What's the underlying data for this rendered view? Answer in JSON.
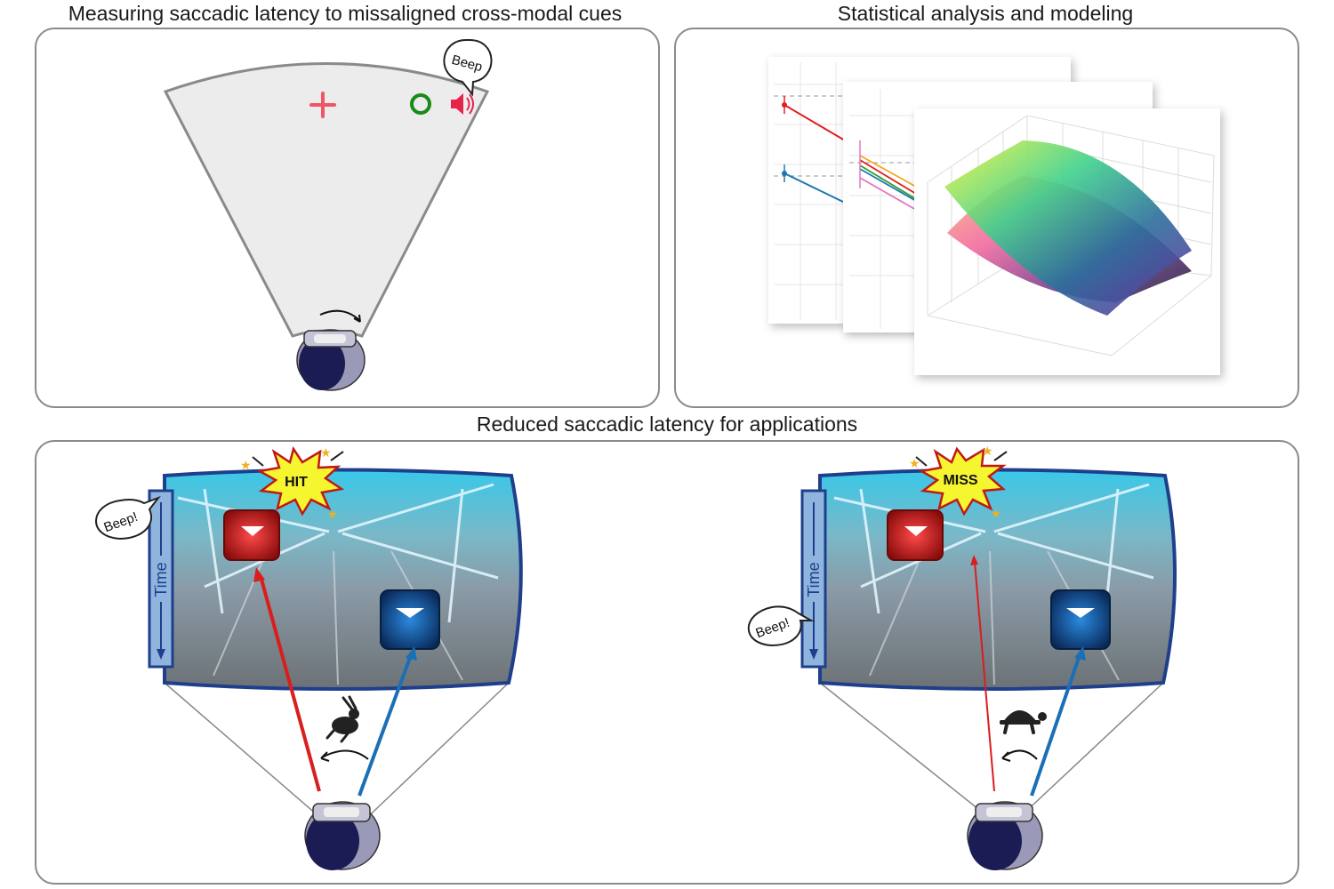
{
  "panels": {
    "measuring": {
      "title": "Measuring saccadic latency to missaligned cross-modal cues",
      "beep_label": "Beep",
      "colors": {
        "cross": "#ee5566",
        "ring": "#1a8a1a",
        "speaker": "#e8234a",
        "fov": "#ececec"
      }
    },
    "analysis": {
      "title": "Statistical analysis and modeling"
    },
    "applications": {
      "title": "Reduced saccadic latency for applications",
      "hit_view": {
        "burst_label": "HIT",
        "beep_label": "Beep!",
        "time_label": "Time",
        "speed_icon": "rabbit-icon"
      },
      "miss_view": {
        "burst_label": "MISS",
        "beep_label": "Beep!",
        "time_label": "Time",
        "speed_icon": "turtle-icon"
      },
      "colors": {
        "red_target": "#d91e1e",
        "blue_target": "#1b6fb5",
        "frame": "#1f3f8c",
        "burst": "#f5f530"
      }
    }
  }
}
